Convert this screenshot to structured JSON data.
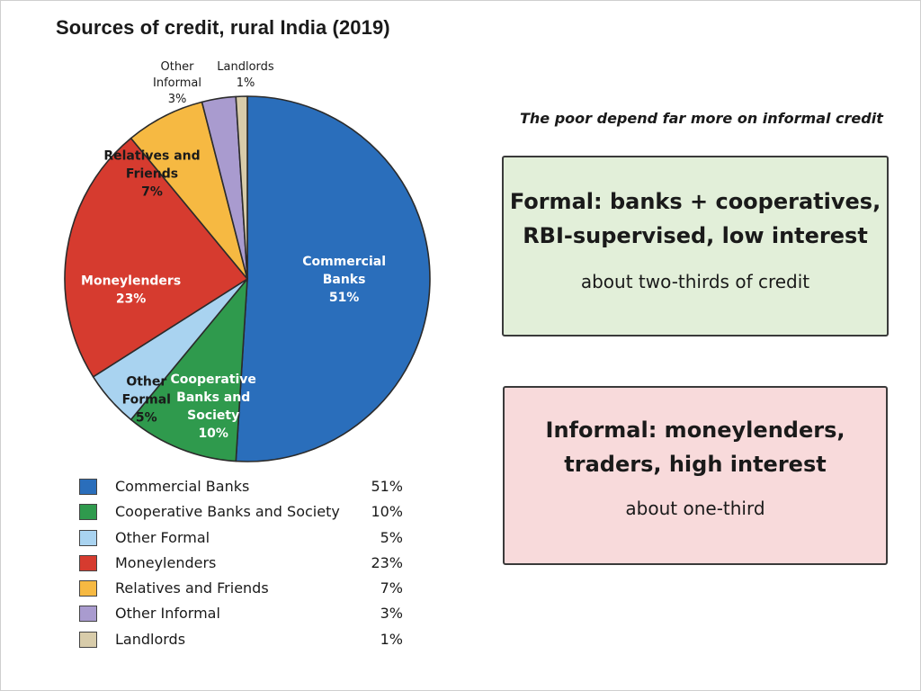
{
  "chart_data": {
    "type": "pie",
    "title": "Sources of credit, rural India (2019)",
    "start_angle_deg": 0,
    "direction": "clockwise",
    "slices": [
      {
        "key": "commercial_banks",
        "name": "Commercial Banks",
        "value": 51,
        "value_label": "51%",
        "color": "#2a6ebb",
        "label_lines": [
          "Commercial",
          "Banks",
          "51%"
        ],
        "label_color": "#ffffff"
      },
      {
        "key": "cooperative_banks",
        "name": "Cooperative Banks and Society",
        "value": 10,
        "value_label": "10%",
        "color": "#2f9a4d",
        "label_lines": [
          "Cooperative",
          "Banks and",
          "Society",
          "10%"
        ],
        "label_color": "#ffffff"
      },
      {
        "key": "other_formal",
        "name": "Other Formal",
        "value": 5,
        "value_label": "5%",
        "color": "#a9d3f0",
        "label_lines": [
          "Other",
          "Formal",
          "5%"
        ],
        "label_color": "#1a1a1a"
      },
      {
        "key": "moneylenders",
        "name": "Moneylenders",
        "value": 23,
        "value_label": "23%",
        "color": "#d63b2f",
        "label_lines": [
          "Moneylenders",
          "23%"
        ],
        "label_color": "#ffffff"
      },
      {
        "key": "relatives_friends",
        "name": "Relatives and Friends",
        "value": 7,
        "value_label": "7%",
        "color": "#f6b942",
        "label_lines": [
          "Relatives and",
          "Friends",
          "7%"
        ],
        "label_color": "#1a1a1a"
      },
      {
        "key": "other_informal",
        "name": "Other Informal",
        "value": 3,
        "value_label": "3%",
        "color": "#a99bcf",
        "label_lines": [
          "Other",
          "Informal",
          "3%"
        ],
        "label_color": "#1a1a1a"
      },
      {
        "key": "landlords",
        "name": "Landlords",
        "value": 1,
        "value_label": "1%",
        "color": "#d8ccaa",
        "label_lines": [
          "Landlords",
          "1%"
        ],
        "label_color": "#1a1a1a"
      }
    ],
    "legend_position": "bottom-left"
  },
  "annotation": {
    "subtitle": "The poor depend far more on informal credit",
    "formal": {
      "line1": "Formal: banks + cooperatives,",
      "line2": "RBI-supervised, low interest",
      "sub": "about two-thirds of credit",
      "color": "#e2efd9"
    },
    "informal": {
      "line1": "Informal: moneylenders,",
      "line2": "traders, high interest",
      "sub": "about one-third",
      "color": "#f8dadb"
    }
  }
}
